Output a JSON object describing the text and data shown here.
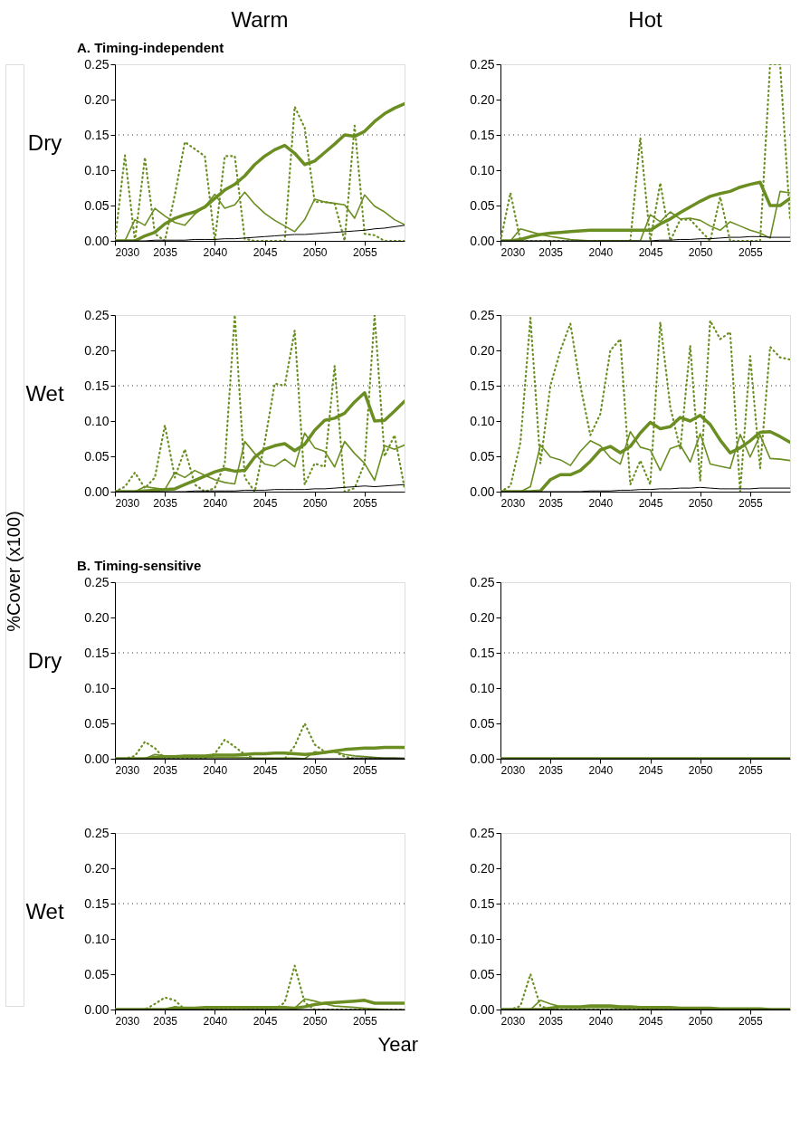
{
  "chart_data": [
    {
      "type": "line",
      "title": "Warm",
      "ylabel": "Dry",
      "annotations": [
        "A. Timing-independent"
      ],
      "x": [
        2030,
        2031,
        2032,
        2033,
        2034,
        2035,
        2036,
        2037,
        2038,
        2039,
        2040,
        2041,
        2042,
        2043,
        2044,
        2045,
        2046,
        2047,
        2048,
        2049,
        2050,
        2051,
        2052,
        2053,
        2054,
        2055,
        2056,
        2057,
        2058,
        2059
      ],
      "xlim": [
        2030,
        2059
      ],
      "xticks": [
        2030,
        2035,
        2040,
        2045,
        2050,
        2055
      ],
      "ylim": [
        0,
        0.25
      ],
      "yticks": [
        {
          "value": 0,
          "label": "0.00"
        },
        {
          "value": 0.05,
          "label": "0.05"
        },
        {
          "value": 0.1,
          "label": "0.10"
        },
        {
          "value": 0.15,
          "label": "0.15"
        },
        {
          "value": 0.2,
          "label": "0.20"
        },
        {
          "value": 0.25,
          "label": "0.25"
        }
      ],
      "ref_lines": [
        {
          "axis": "y",
          "value": 0.15,
          "color": "#333333",
          "line_style": "dotted"
        }
      ],
      "series": [
        {
          "color": "#6b8e23",
          "line_style": "dotted",
          "values": [
            0,
            0.121,
            0,
            0.118,
            0.01,
            0,
            0.065,
            0.14,
            0.13,
            0.12,
            0,
            0.12,
            0.12,
            0.003,
            0,
            0,
            0,
            0,
            0.19,
            0.16,
            0.055,
            0.055,
            0.053,
            0,
            0.163,
            0.01,
            0.008,
            0,
            0,
            0
          ]
        },
        {
          "color": "#6b8e23",
          "values": [
            0,
            0,
            0.03,
            0.022,
            0.046,
            0.035,
            0.026,
            0.022,
            0.038,
            0.048,
            0.066,
            0.046,
            0.051,
            0.069,
            0.052,
            0.039,
            0.029,
            0.021,
            0.013,
            0.03,
            0.059,
            0.055,
            0.053,
            0.051,
            0.032,
            0.065,
            0.049,
            0.041,
            0.03,
            0.023
          ]
        },
        {
          "color": "#6b8e23",
          "values": [
            0,
            0,
            0,
            0.007,
            0.012,
            0.024,
            0.032,
            0.037,
            0.041,
            0.048,
            0.06,
            0.072,
            0.08,
            0.092,
            0.108,
            0.12,
            0.129,
            0.135,
            0.124,
            0.108,
            0.113,
            0.125,
            0.137,
            0.15,
            0.148,
            0.155,
            0.169,
            0.18,
            0.188,
            0.194
          ]
        },
        {
          "color": "#000000",
          "values": [
            0,
            0,
            0,
            0,
            0.001,
            0.001,
            0.001,
            0.001,
            0.002,
            0.002,
            0.002,
            0.003,
            0.003,
            0.004,
            0.005,
            0.006,
            0.007,
            0.008,
            0.009,
            0.009,
            0.01,
            0.011,
            0.012,
            0.013,
            0.014,
            0.015,
            0.017,
            0.018,
            0.02,
            0.022
          ]
        }
      ]
    },
    {
      "type": "line",
      "title": "Hot",
      "x": [
        2030,
        2031,
        2032,
        2033,
        2034,
        2035,
        2036,
        2037,
        2038,
        2039,
        2040,
        2041,
        2042,
        2043,
        2044,
        2045,
        2046,
        2047,
        2048,
        2049,
        2050,
        2051,
        2052,
        2053,
        2054,
        2055,
        2056,
        2057,
        2058,
        2059
      ],
      "xlim": [
        2030,
        2059
      ],
      "xticks": [
        2030,
        2035,
        2040,
        2045,
        2050,
        2055
      ],
      "ylim": [
        0,
        0.25
      ],
      "yticks": [
        {
          "value": 0,
          "label": "0.00"
        },
        {
          "value": 0.05,
          "label": "0.05"
        },
        {
          "value": 0.1,
          "label": "0.10"
        },
        {
          "value": 0.15,
          "label": "0.15"
        },
        {
          "value": 0.2,
          "label": "0.20"
        },
        {
          "value": 0.25,
          "label": "0.25"
        }
      ],
      "ref_lines": [
        {
          "axis": "y",
          "value": 0.15,
          "color": "#333333",
          "line_style": "dotted"
        }
      ],
      "series": [
        {
          "color": "#6b8e23",
          "line_style": "dotted",
          "values": [
            0,
            0.068,
            0,
            0,
            0,
            0,
            0,
            0,
            0,
            0,
            0,
            0,
            0,
            0,
            0.146,
            0,
            0.082,
            0,
            0.03,
            0.03,
            0.015,
            0,
            0.062,
            0,
            0,
            0,
            0,
            0.25,
            0.25,
            0.03
          ]
        },
        {
          "color": "#6b8e23",
          "values": [
            0,
            0,
            0.017,
            0.013,
            0.009,
            0.006,
            0.004,
            0.002,
            0.001,
            0,
            0,
            0,
            0,
            0,
            0,
            0.037,
            0.027,
            0.041,
            0.031,
            0.032,
            0.029,
            0.021,
            0.015,
            0.027,
            0.021,
            0.015,
            0.011,
            0.004,
            0.07,
            0.068
          ]
        },
        {
          "color": "#6b8e23",
          "values": [
            0,
            0,
            0.002,
            0.006,
            0.009,
            0.011,
            0.012,
            0.013,
            0.014,
            0.015,
            0.015,
            0.015,
            0.015,
            0.015,
            0.015,
            0.015,
            0.024,
            0.031,
            0.04,
            0.048,
            0.056,
            0.063,
            0.067,
            0.07,
            0.076,
            0.08,
            0.083,
            0.05,
            0.05,
            0.06
          ]
        },
        {
          "color": "#000000",
          "values": [
            0,
            0,
            0,
            0,
            0,
            0,
            0,
            0,
            0,
            0,
            0,
            0,
            0,
            0,
            0,
            0,
            0.001,
            0.001,
            0.002,
            0.002,
            0.003,
            0.003,
            0.004,
            0.005,
            0.005,
            0.006,
            0.006,
            0.005,
            0.005,
            0.005
          ]
        }
      ]
    },
    {
      "type": "line",
      "ylabel": "Wet",
      "annotations": [
        "%Cover (x100)"
      ],
      "x": [
        2030,
        2031,
        2032,
        2033,
        2034,
        2035,
        2036,
        2037,
        2038,
        2039,
        2040,
        2041,
        2042,
        2043,
        2044,
        2045,
        2046,
        2047,
        2048,
        2049,
        2050,
        2051,
        2052,
        2053,
        2054,
        2055,
        2056,
        2057,
        2058,
        2059
      ],
      "xlim": [
        2030,
        2059
      ],
      "xticks": [
        2030,
        2035,
        2040,
        2045,
        2050,
        2055
      ],
      "ylim": [
        0,
        0.25
      ],
      "yticks": [
        {
          "value": 0,
          "label": "0.00"
        },
        {
          "value": 0.05,
          "label": "0.05"
        },
        {
          "value": 0.1,
          "label": "0.10"
        },
        {
          "value": 0.15,
          "label": "0.15"
        },
        {
          "value": 0.2,
          "label": "0.20"
        },
        {
          "value": 0.25,
          "label": "0.25"
        }
      ],
      "ref_lines": [
        {
          "axis": "y",
          "value": 0.15,
          "color": "#333333",
          "line_style": "dotted"
        }
      ],
      "series": [
        {
          "color": "#6b8e23",
          "line_style": "dotted",
          "values": [
            0,
            0.007,
            0.027,
            0.005,
            0.02,
            0.094,
            0.02,
            0.06,
            0.01,
            0,
            0.005,
            0.04,
            0.25,
            0.02,
            0,
            0.07,
            0.153,
            0.15,
            0.228,
            0.01,
            0.04,
            0.035,
            0.178,
            0,
            0.005,
            0.04,
            0.25,
            0.05,
            0.08,
            0.005
          ]
        },
        {
          "color": "#6b8e23",
          "values": [
            0,
            0,
            0,
            0.007,
            0.005,
            0.003,
            0.027,
            0.02,
            0.03,
            0.023,
            0.017,
            0.013,
            0.011,
            0.071,
            0.054,
            0.039,
            0.036,
            0.046,
            0.035,
            0.083,
            0.062,
            0.057,
            0.035,
            0.071,
            0.054,
            0.04,
            0.016,
            0.065,
            0.06,
            0.066
          ]
        },
        {
          "color": "#6b8e23",
          "values": [
            0,
            0,
            0,
            0.001,
            0.002,
            0.003,
            0.004,
            0.01,
            0.016,
            0.022,
            0.028,
            0.032,
            0.029,
            0.03,
            0.049,
            0.06,
            0.065,
            0.068,
            0.058,
            0.067,
            0.087,
            0.101,
            0.104,
            0.111,
            0.127,
            0.14,
            0.1,
            0.101,
            0.114,
            0.128
          ]
        },
        {
          "color": "#000000",
          "values": [
            0,
            0,
            0,
            0,
            0,
            0,
            0,
            0,
            0.001,
            0.001,
            0.001,
            0.001,
            0.001,
            0.002,
            0.002,
            0.002,
            0.003,
            0.003,
            0.003,
            0.003,
            0.004,
            0.004,
            0.005,
            0.006,
            0.007,
            0.008,
            0.007,
            0.008,
            0.009,
            0.01
          ]
        }
      ]
    },
    {
      "type": "line",
      "x": [
        2030,
        2031,
        2032,
        2033,
        2034,
        2035,
        2036,
        2037,
        2038,
        2039,
        2040,
        2041,
        2042,
        2043,
        2044,
        2045,
        2046,
        2047,
        2048,
        2049,
        2050,
        2051,
        2052,
        2053,
        2054,
        2055,
        2056,
        2057,
        2058,
        2059
      ],
      "xlim": [
        2030,
        2059
      ],
      "xticks": [
        2030,
        2035,
        2040,
        2045,
        2050,
        2055
      ],
      "ylim": [
        0,
        0.25
      ],
      "yticks": [
        {
          "value": 0,
          "label": "0.00"
        },
        {
          "value": 0.05,
          "label": "0.05"
        },
        {
          "value": 0.1,
          "label": "0.10"
        },
        {
          "value": 0.15,
          "label": "0.15"
        },
        {
          "value": 0.2,
          "label": "0.20"
        },
        {
          "value": 0.25,
          "label": "0.25"
        }
      ],
      "ref_lines": [
        {
          "axis": "y",
          "value": 0.15,
          "color": "#333333",
          "line_style": "dotted"
        }
      ],
      "series": [
        {
          "color": "#6b8e23",
          "line_style": "dotted",
          "values": [
            0,
            0.008,
            0.07,
            0.246,
            0.04,
            0.15,
            0.2,
            0.238,
            0.15,
            0.08,
            0.11,
            0.2,
            0.216,
            0.01,
            0.044,
            0.01,
            0.24,
            0.12,
            0.06,
            0.207,
            0.015,
            0.242,
            0.216,
            0.226,
            0,
            0.192,
            0.033,
            0.205,
            0.19,
            0.187
          ]
        },
        {
          "color": "#6b8e23",
          "values": [
            0,
            0,
            0,
            0.007,
            0.066,
            0.049,
            0.045,
            0.037,
            0.057,
            0.072,
            0.065,
            0.048,
            0.039,
            0.085,
            0.063,
            0.059,
            0.03,
            0.061,
            0.066,
            0.042,
            0.082,
            0.039,
            0.036,
            0.033,
            0.081,
            0.049,
            0.08,
            0.047,
            0.046,
            0.044
          ]
        },
        {
          "color": "#6b8e23",
          "values": [
            0,
            0,
            0,
            0,
            0.001,
            0.017,
            0.024,
            0.024,
            0.03,
            0.043,
            0.059,
            0.064,
            0.055,
            0.064,
            0.083,
            0.098,
            0.089,
            0.092,
            0.105,
            0.1,
            0.108,
            0.095,
            0.073,
            0.055,
            0.062,
            0.072,
            0.084,
            0.085,
            0.078,
            0.07
          ]
        },
        {
          "color": "#000000",
          "values": [
            0,
            0,
            0,
            0,
            0,
            0,
            0,
            0,
            0,
            0.001,
            0.001,
            0.001,
            0.002,
            0.002,
            0.003,
            0.003,
            0.004,
            0.004,
            0.005,
            0.005,
            0.006,
            0.005,
            0.004,
            0.004,
            0.004,
            0.004,
            0.005,
            0.005,
            0.005,
            0.005
          ]
        }
      ]
    },
    {
      "type": "line",
      "ylabel": "Dry",
      "annotations": [
        "B. Timing-sensitive"
      ],
      "x": [
        2030,
        2031,
        2032,
        2033,
        2034,
        2035,
        2036,
        2037,
        2038,
        2039,
        2040,
        2041,
        2042,
        2043,
        2044,
        2045,
        2046,
        2047,
        2048,
        2049,
        2050,
        2051,
        2052,
        2053,
        2054,
        2055,
        2056,
        2057,
        2058,
        2059
      ],
      "xlim": [
        2030,
        2059
      ],
      "xticks": [
        2030,
        2035,
        2040,
        2045,
        2050,
        2055
      ],
      "ylim": [
        0,
        0.25
      ],
      "yticks": [
        {
          "value": 0,
          "label": "0.00"
        },
        {
          "value": 0.05,
          "label": "0.05"
        },
        {
          "value": 0.1,
          "label": "0.10"
        },
        {
          "value": 0.15,
          "label": "0.15"
        },
        {
          "value": 0.2,
          "label": "0.20"
        },
        {
          "value": 0.25,
          "label": "0.25"
        }
      ],
      "ref_lines": [
        {
          "axis": "y",
          "value": 0.15,
          "color": "#333333",
          "line_style": "dotted"
        }
      ],
      "series": [
        {
          "color": "#6b8e23",
          "line_style": "dotted",
          "values": [
            0,
            0,
            0.004,
            0.024,
            0.015,
            0,
            0,
            0,
            0,
            0,
            0.007,
            0.027,
            0.017,
            0.006,
            0,
            0,
            0,
            0,
            0.018,
            0.05,
            0.02,
            0.01,
            0.01,
            0.003,
            0,
            0,
            0,
            0,
            0,
            0
          ]
        },
        {
          "color": "#6b8e23",
          "values": [
            0,
            0,
            0,
            0,
            0.006,
            0.004,
            0.003,
            0.002,
            0.002,
            0.002,
            0.002,
            0.002,
            0.002,
            0.002,
            0.001,
            0.001,
            0.001,
            0.001,
            0.001,
            0,
            0.01,
            0.008,
            0.01,
            0.006,
            0.004,
            0.003,
            0.002,
            0.001,
            0.001,
            0
          ]
        },
        {
          "color": "#6b8e23",
          "values": [
            0,
            0,
            0,
            0,
            0.002,
            0.003,
            0.003,
            0.004,
            0.004,
            0.004,
            0.005,
            0.005,
            0.005,
            0.006,
            0.007,
            0.007,
            0.008,
            0.008,
            0.007,
            0.006,
            0.007,
            0.009,
            0.011,
            0.013,
            0.014,
            0.015,
            0.015,
            0.016,
            0.016,
            0.016
          ]
        },
        {
          "color": "#000000",
          "values": [
            0,
            0,
            0,
            0,
            0,
            0,
            0,
            0,
            0,
            0,
            0,
            0,
            0,
            0,
            0,
            0,
            0,
            0,
            0,
            0,
            0,
            0,
            0,
            0,
            0.001,
            0.001,
            0.001,
            0.001,
            0.001,
            0.001
          ]
        }
      ]
    },
    {
      "type": "line",
      "x": [
        2030,
        2031,
        2032,
        2033,
        2034,
        2035,
        2036,
        2037,
        2038,
        2039,
        2040,
        2041,
        2042,
        2043,
        2044,
        2045,
        2046,
        2047,
        2048,
        2049,
        2050,
        2051,
        2052,
        2053,
        2054,
        2055,
        2056,
        2057,
        2058,
        2059
      ],
      "xlim": [
        2030,
        2059
      ],
      "xticks": [
        2030,
        2035,
        2040,
        2045,
        2050,
        2055
      ],
      "ylim": [
        0,
        0.25
      ],
      "yticks": [
        {
          "value": 0,
          "label": "0.00"
        },
        {
          "value": 0.05,
          "label": "0.05"
        },
        {
          "value": 0.1,
          "label": "0.10"
        },
        {
          "value": 0.15,
          "label": "0.15"
        },
        {
          "value": 0.2,
          "label": "0.20"
        },
        {
          "value": 0.25,
          "label": "0.25"
        }
      ],
      "ref_lines": [
        {
          "axis": "y",
          "value": 0.15,
          "color": "#333333",
          "line_style": "dotted"
        }
      ],
      "series": [
        {
          "color": "#6b8e23",
          "line_style": "dotted",
          "values": [
            null,
            null,
            null,
            null,
            null,
            null,
            null,
            null,
            null,
            null,
            null,
            null,
            null,
            null,
            null,
            null,
            null,
            null,
            null,
            null,
            null,
            null,
            null,
            null,
            null,
            null,
            null,
            null,
            null,
            null
          ]
        },
        {
          "color": "#6b8e23",
          "values": [
            null,
            null,
            null,
            null,
            null,
            null,
            null,
            null,
            null,
            null,
            null,
            null,
            null,
            null,
            null,
            null,
            null,
            null,
            null,
            null,
            null,
            null,
            null,
            null,
            null,
            null,
            null,
            null,
            null,
            null
          ]
        },
        {
          "color": "#6b8e23",
          "values": [
            0,
            0,
            0,
            0,
            0,
            0,
            0,
            0,
            0,
            0,
            0,
            0,
            0,
            0,
            0,
            0,
            0,
            0,
            0,
            0,
            0,
            0,
            0,
            0,
            0,
            0,
            0,
            0,
            0,
            0
          ]
        },
        {
          "color": "#000000",
          "values": [
            0,
            0,
            0,
            0,
            0,
            0,
            0,
            0,
            0,
            0,
            0,
            0,
            0,
            0,
            0,
            0,
            0,
            0,
            0,
            0,
            0,
            0,
            0,
            0,
            0,
            0,
            0,
            0,
            0,
            0
          ]
        }
      ]
    },
    {
      "type": "line",
      "ylabel": "Wet",
      "xlabel": "Year",
      "x": [
        2030,
        2031,
        2032,
        2033,
        2034,
        2035,
        2036,
        2037,
        2038,
        2039,
        2040,
        2041,
        2042,
        2043,
        2044,
        2045,
        2046,
        2047,
        2048,
        2049,
        2050,
        2051,
        2052,
        2053,
        2054,
        2055,
        2056,
        2057,
        2058,
        2059
      ],
      "xlim": [
        2030,
        2059
      ],
      "xticks": [
        2030,
        2035,
        2040,
        2045,
        2050,
        2055
      ],
      "ylim": [
        0,
        0.25
      ],
      "yticks": [
        {
          "value": 0,
          "label": "0.00"
        },
        {
          "value": 0.05,
          "label": "0.05"
        },
        {
          "value": 0.1,
          "label": "0.10"
        },
        {
          "value": 0.15,
          "label": "0.15"
        },
        {
          "value": 0.2,
          "label": "0.20"
        },
        {
          "value": 0.25,
          "label": "0.25"
        }
      ],
      "ref_lines": [
        {
          "axis": "y",
          "value": 0.15,
          "color": "#333333",
          "line_style": "dotted"
        }
      ],
      "series": [
        {
          "color": "#6b8e23",
          "line_style": "dotted",
          "values": [
            0,
            0,
            0,
            0,
            0.008,
            0.017,
            0.013,
            0,
            0,
            0,
            0,
            0,
            0,
            0,
            0,
            0,
            0,
            0.01,
            0.062,
            0.01,
            0,
            0,
            0,
            0,
            0,
            0,
            0,
            0,
            0,
            0
          ]
        },
        {
          "color": "#6b8e23",
          "values": [
            0,
            0,
            0,
            0,
            0,
            0,
            0.004,
            0.002,
            0.002,
            0.002,
            0.002,
            0.002,
            0.002,
            0.002,
            0.002,
            0.002,
            0.002,
            0.002,
            0.002,
            0.015,
            0.012,
            0.008,
            0.005,
            0.004,
            0.003,
            0.002,
            0.001,
            0,
            null,
            null
          ]
        },
        {
          "color": "#6b8e23",
          "values": [
            0,
            0,
            0,
            0,
            0,
            0,
            0.002,
            0.002,
            0.002,
            0.003,
            0.003,
            0.003,
            0.003,
            0.003,
            0.003,
            0.003,
            0.003,
            0.003,
            0.002,
            0.004,
            0.007,
            0.009,
            0.01,
            0.011,
            0.012,
            0.013,
            0.009,
            0.009,
            0.009,
            0.009
          ]
        },
        {
          "color": "#000000",
          "values": [
            0,
            0,
            0,
            0,
            0,
            0,
            0,
            0,
            0,
            0,
            0,
            0,
            0,
            0,
            0,
            0,
            0,
            0,
            0,
            0,
            0,
            0,
            0,
            0,
            0,
            0,
            0,
            0,
            0,
            0
          ]
        }
      ]
    },
    {
      "type": "line",
      "x": [
        2030,
        2031,
        2032,
        2033,
        2034,
        2035,
        2036,
        2037,
        2038,
        2039,
        2040,
        2041,
        2042,
        2043,
        2044,
        2045,
        2046,
        2047,
        2048,
        2049,
        2050,
        2051,
        2052,
        2053,
        2054,
        2055,
        2056,
        2057,
        2058,
        2059
      ],
      "xlim": [
        2030,
        2059
      ],
      "xticks": [
        2030,
        2035,
        2040,
        2045,
        2050,
        2055
      ],
      "ylim": [
        0,
        0.25
      ],
      "yticks": [
        {
          "value": 0,
          "label": "0.00"
        },
        {
          "value": 0.05,
          "label": "0.05"
        },
        {
          "value": 0.1,
          "label": "0.10"
        },
        {
          "value": 0.15,
          "label": "0.15"
        },
        {
          "value": 0.2,
          "label": "0.20"
        },
        {
          "value": 0.25,
          "label": "0.25"
        }
      ],
      "ref_lines": [
        {
          "axis": "y",
          "value": 0.15,
          "color": "#333333",
          "line_style": "dotted"
        }
      ],
      "series": [
        {
          "color": "#6b8e23",
          "line_style": "dotted",
          "values": [
            0,
            0,
            0.005,
            0.05,
            0.005,
            0,
            0,
            0,
            0,
            0,
            0,
            0,
            0,
            0,
            0,
            0,
            0,
            0,
            0,
            0,
            0,
            0,
            0,
            0,
            0,
            0,
            0,
            0,
            0,
            0
          ]
        },
        {
          "color": "#6b8e23",
          "values": [
            0,
            0,
            0,
            0,
            0.013,
            0.008,
            0.004,
            0.003,
            0.003,
            0.003,
            0.003,
            0.003,
            0.002,
            0.002,
            0.002,
            0.002,
            0.002,
            0.002,
            0.001,
            0.001,
            0.001,
            0.001,
            0.001,
            0,
            0,
            0,
            0,
            0,
            0,
            0
          ]
        },
        {
          "color": "#6b8e23",
          "values": [
            0,
            0,
            0,
            0,
            0,
            0.002,
            0.004,
            0.004,
            0.004,
            0.005,
            0.005,
            0.005,
            0.004,
            0.004,
            0.003,
            0.003,
            0.003,
            0.003,
            0.002,
            0.002,
            0.002,
            0.002,
            0.001,
            0.001,
            0.001,
            0.001,
            0.001,
            0,
            0,
            0
          ]
        },
        {
          "color": "#000000",
          "values": [
            0,
            0,
            0,
            0,
            0,
            0,
            0,
            0,
            0,
            0,
            0,
            0,
            0,
            0,
            0,
            0,
            0,
            0,
            0,
            0,
            0,
            0,
            0,
            0,
            0,
            0,
            0,
            0,
            0,
            0
          ]
        }
      ]
    }
  ]
}
